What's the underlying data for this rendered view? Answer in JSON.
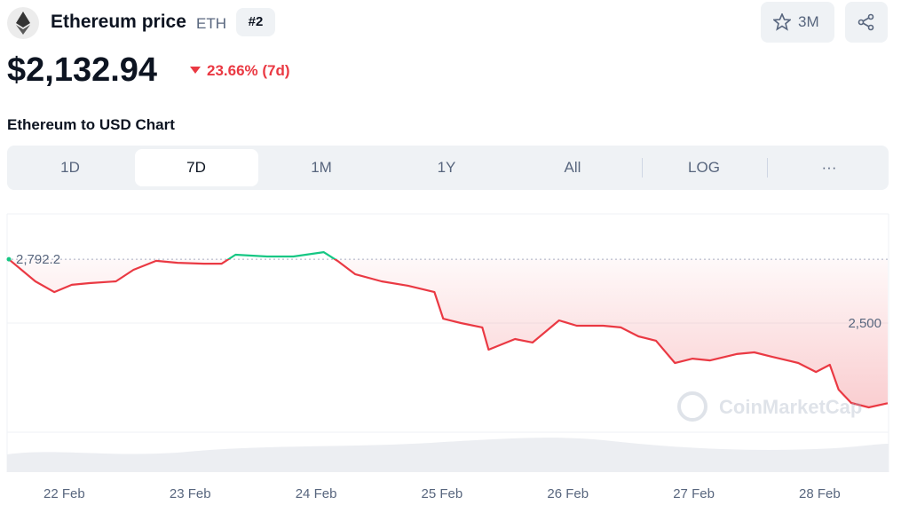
{
  "header": {
    "title": "Ethereum price",
    "symbol": "ETH",
    "rank": "#2",
    "watchlist": "3M"
  },
  "price": {
    "value": "$2,132.94",
    "change": "23.66% (7d)"
  },
  "chart_heading": "Ethereum to USD Chart",
  "tabs": [
    "1D",
    "7D",
    "1M",
    "1Y",
    "All",
    "LOG",
    "···"
  ],
  "watermark": "CoinMarketCap",
  "chart_data": {
    "type": "line",
    "x": [
      21.56,
      21.77,
      21.92,
      22.06,
      22.2,
      22.41,
      22.55,
      22.73,
      22.9,
      23.11,
      23.25,
      23.36,
      23.61,
      23.82,
      24.06,
      24.17,
      24.31,
      24.52,
      24.73,
      24.94,
      25.01,
      25.15,
      25.32,
      25.37,
      25.58,
      25.72,
      25.93,
      26.07,
      26.28,
      26.42,
      26.56,
      26.7,
      26.85,
      26.99,
      27.13,
      27.34,
      27.48,
      27.62,
      27.83,
      27.97,
      28.08,
      28.15,
      28.25,
      28.39,
      28.54
    ],
    "series": [
      {
        "name": "ETH",
        "color": "#ea3943",
        "up_color": "#16c784",
        "values": [
          2792,
          2691,
          2642,
          2675,
          2683,
          2691,
          2744,
          2785,
          2776,
          2772,
          2772,
          2813,
          2805,
          2805,
          2825,
          2785,
          2724,
          2691,
          2671,
          2642,
          2520,
          2500,
          2480,
          2378,
          2427,
          2411,
          2512,
          2488,
          2488,
          2480,
          2439,
          2419,
          2317,
          2337,
          2329,
          2358,
          2366,
          2346,
          2317,
          2276,
          2309,
          2195,
          2134,
          2114,
          2133
        ]
      }
    ],
    "xlim": [
      21.56,
      28.54
    ],
    "xticks": [
      {
        "value": 22,
        "label": "22 Feb"
      },
      {
        "value": 23,
        "label": "23 Feb"
      },
      {
        "value": 24,
        "label": "24 Feb"
      },
      {
        "value": 25,
        "label": "25 Feb"
      },
      {
        "value": 26,
        "label": "26 Feb"
      },
      {
        "value": 27,
        "label": "27 Feb"
      },
      {
        "value": 28,
        "label": "28 Feb"
      }
    ],
    "ylim": [
      2000,
      3000
    ],
    "yticks": [
      {
        "value": 2500,
        "label": "2,500"
      }
    ],
    "reference": {
      "value": 2792.2,
      "label": "2,792.2"
    },
    "grid": true
  }
}
